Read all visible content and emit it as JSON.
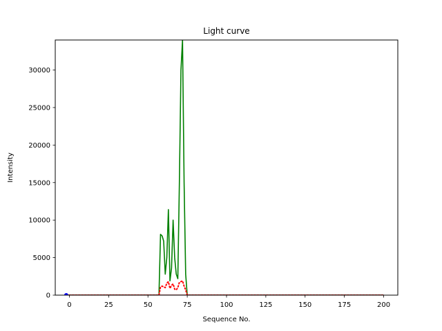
{
  "chart_data": {
    "type": "line",
    "title": "Light curve",
    "xlabel": "Sequence No.",
    "ylabel": "Intensity",
    "xlim": [
      -9,
      209
    ],
    "ylim": [
      0,
      34000
    ],
    "xticks": [
      0,
      25,
      50,
      75,
      100,
      125,
      150,
      175,
      200
    ],
    "yticks": [
      0,
      5000,
      10000,
      15000,
      20000,
      25000,
      30000
    ],
    "grid": false,
    "legend": "none",
    "series": [
      {
        "color": "#008000",
        "style": "solid",
        "x": [
          -2,
          57,
          58,
          59,
          60,
          61,
          62,
          63,
          64,
          65,
          66,
          67,
          68,
          69,
          70,
          71,
          72,
          73,
          74,
          75,
          76,
          200
        ],
        "y": [
          0,
          0,
          8100,
          7900,
          7200,
          2800,
          5000,
          11400,
          1900,
          3600,
          10000,
          5000,
          2800,
          2200,
          15000,
          30000,
          34000,
          15000,
          2800,
          0,
          0,
          0
        ]
      },
      {
        "color": "#ff0000",
        "style": "dotted",
        "x": [
          -2,
          57,
          58,
          59,
          60,
          61,
          62,
          63,
          64,
          65,
          66,
          67,
          68,
          69,
          70,
          71,
          72,
          73,
          74,
          75,
          76,
          200
        ],
        "y": [
          0,
          0,
          1100,
          1200,
          1100,
          1000,
          1600,
          1800,
          900,
          1300,
          1500,
          800,
          700,
          1000,
          1700,
          1800,
          1900,
          1200,
          700,
          0,
          0,
          0
        ]
      },
      {
        "color": "#8b0000",
        "style": "solid",
        "x": [
          -2,
          200
        ],
        "y": [
          0,
          0
        ]
      },
      {
        "color": "#0000ff",
        "style": "marker",
        "x": [
          -2
        ],
        "y": [
          0
        ]
      }
    ]
  }
}
